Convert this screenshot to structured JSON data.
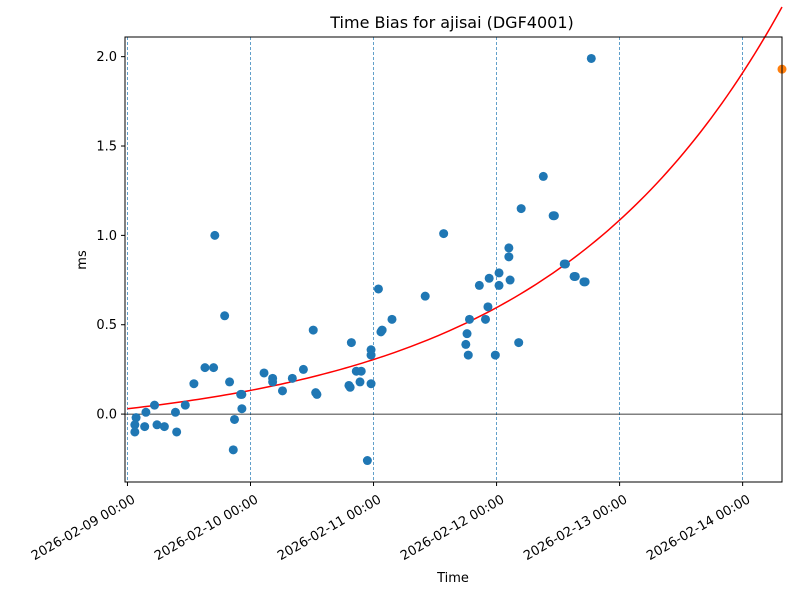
{
  "chart_data": {
    "type": "scatter",
    "title": "Time Bias for ajisai (DGF4001)",
    "xlabel": "Time",
    "ylabel": "ms",
    "x_tick_labels": [
      "2026-02-09 00:00",
      "2026-02-10 00:00",
      "2026-02-11 00:00",
      "2026-02-12 00:00",
      "2026-02-13 00:00",
      "2026-02-14 00:00"
    ],
    "x_tick_days": [
      0,
      1,
      2,
      3,
      4,
      5
    ],
    "y_ticks": [
      0.0,
      0.5,
      1.0,
      1.5,
      2.0
    ],
    "y_tick_labels": [
      "0.0",
      "0.5",
      "1.0",
      "1.5",
      "2.0"
    ],
    "xlim_days": [
      -0.02,
      5.32
    ],
    "ylim": [
      -0.38,
      2.11
    ],
    "grid": "vertical dashed at day boundaries",
    "zero_line": true,
    "colors": {
      "points": "#1f77b4",
      "fit": "#ff0000",
      "forecast": "#ff7f0e",
      "grid": "#1f77b4"
    },
    "series": [
      {
        "kind": "points",
        "x_days": [
          0.06,
          0.06,
          0.07,
          0.15,
          0.14,
          0.24,
          0.22,
          0.3,
          0.39,
          0.4,
          0.47,
          0.54,
          0.63,
          0.7,
          0.71,
          0.79,
          0.83,
          0.86,
          0.87,
          0.92,
          0.93,
          0.93,
          1.11,
          1.18,
          1.18,
          1.26,
          1.34,
          1.43,
          1.51,
          1.53,
          1.54,
          1.8,
          1.81,
          1.82,
          1.86,
          1.89,
          1.9,
          1.95,
          1.98,
          1.98,
          1.98,
          2.04,
          2.06,
          2.07,
          2.15,
          2.42,
          2.57,
          2.75,
          2.76,
          2.77,
          2.78,
          2.86,
          2.91,
          2.93,
          2.94,
          2.99,
          3.02,
          3.02,
          3.1,
          3.1,
          3.11,
          3.18,
          3.2,
          3.38,
          3.46,
          3.47,
          3.55,
          3.56,
          3.63,
          3.64,
          3.71,
          3.72,
          3.77
        ],
        "values": [
          -0.1,
          -0.06,
          -0.02,
          0.01,
          -0.07,
          -0.06,
          0.05,
          -0.07,
          0.01,
          -0.1,
          0.05,
          0.17,
          0.26,
          0.26,
          1.0,
          0.55,
          0.18,
          -0.2,
          -0.03,
          0.11,
          0.11,
          0.03,
          0.23,
          0.2,
          0.18,
          0.13,
          0.2,
          0.25,
          0.47,
          0.12,
          0.11,
          0.16,
          0.15,
          0.4,
          0.24,
          0.18,
          0.24,
          -0.26,
          0.17,
          0.33,
          0.36,
          0.7,
          0.46,
          0.47,
          0.53,
          0.66,
          1.01,
          0.39,
          0.45,
          0.33,
          0.53,
          0.72,
          0.53,
          0.6,
          0.76,
          0.33,
          0.79,
          0.72,
          0.93,
          0.88,
          0.75,
          0.4,
          1.15,
          1.33,
          1.11,
          1.11,
          0.84,
          0.84,
          0.77,
          0.77,
          0.74,
          0.74,
          1.99
        ]
      },
      {
        "kind": "fit",
        "model": "y = 0.15*exp(0.521*x_days) - 0.12",
        "x_range_days": [
          0.0,
          5.32
        ]
      },
      {
        "kind": "forecast",
        "x_days": [
          5.32
        ],
        "values": [
          1.93
        ]
      }
    ]
  }
}
